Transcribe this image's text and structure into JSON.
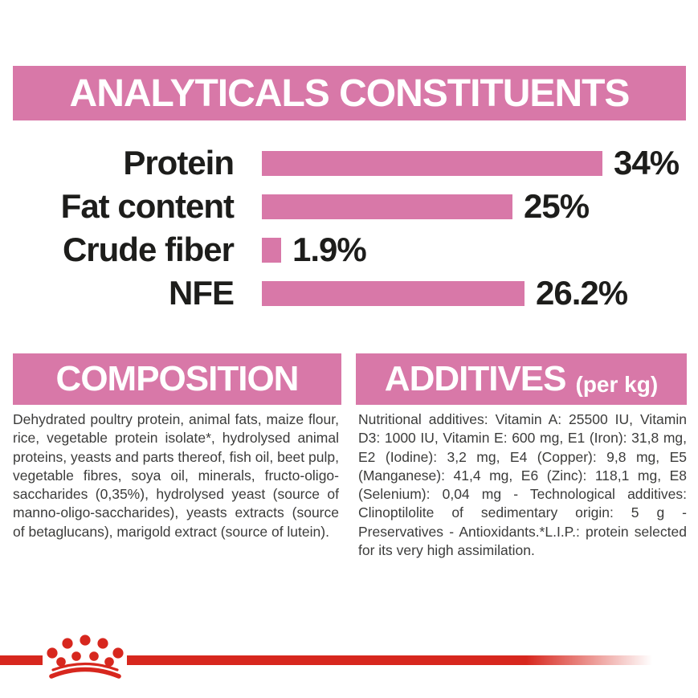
{
  "colors": {
    "pink": "#D878A8",
    "red": "#D7271E",
    "heading_text": "#ffffff",
    "chart_text": "#1d1d1b",
    "body_text": "#3c3c3b",
    "background": "#ffffff"
  },
  "header": {
    "title": "ANALYTICALS CONSTITUENTS"
  },
  "chart_data": {
    "type": "bar",
    "orientation": "horizontal",
    "title": "ANALYTICALS CONSTITUENTS",
    "categories": [
      "Protein",
      "Fat content",
      "Crude fiber",
      "NFE"
    ],
    "values": [
      34,
      25,
      1.9,
      26.2
    ],
    "value_labels": [
      "34%",
      "25%",
      "1.9%",
      "26.2%"
    ],
    "unit": "%",
    "xlim": [
      0,
      34
    ],
    "bar_color": "#D878A8",
    "grid": "off",
    "legend": "none"
  },
  "sections": {
    "composition": {
      "title": "COMPOSITION",
      "body": "Dehydrated poultry protein, animal fats, maize flour, rice, vegetable protein isolate*, hydrolysed animal proteins, yeasts and parts thereof, fish oil, beet pulp, vegetable fibres, soya oil, minerals, fructo-oligo-saccharides (0,35%), hydrolysed yeast (source of manno-oligo-saccharides), yeasts extracts (source of betaglucans), marigold extract (source of lutein)."
    },
    "additives": {
      "title": "ADDITIVES",
      "title_suffix": "(per kg)",
      "body": "Nutritional additives: Vitamin A: 25500 IU, Vitamin D3: 1000 IU, Vitamin E: 600 mg, E1 (Iron): 31,8 mg, E2 (Iodine): 3,2 mg, E4 (Copper): 9,8 mg, E5 (Manganese): 41,4 mg, E6 (Zinc): 118,1 mg, E8 (Selenium): 0,04 mg - Technological additives: Clinoptilolite of sedimentary origin: 5 g - Preservatives - Antioxidants.*L.I.P.: protein selected for its very high assimilation."
    }
  },
  "footer": {
    "logo": "royal-canin-crown"
  }
}
